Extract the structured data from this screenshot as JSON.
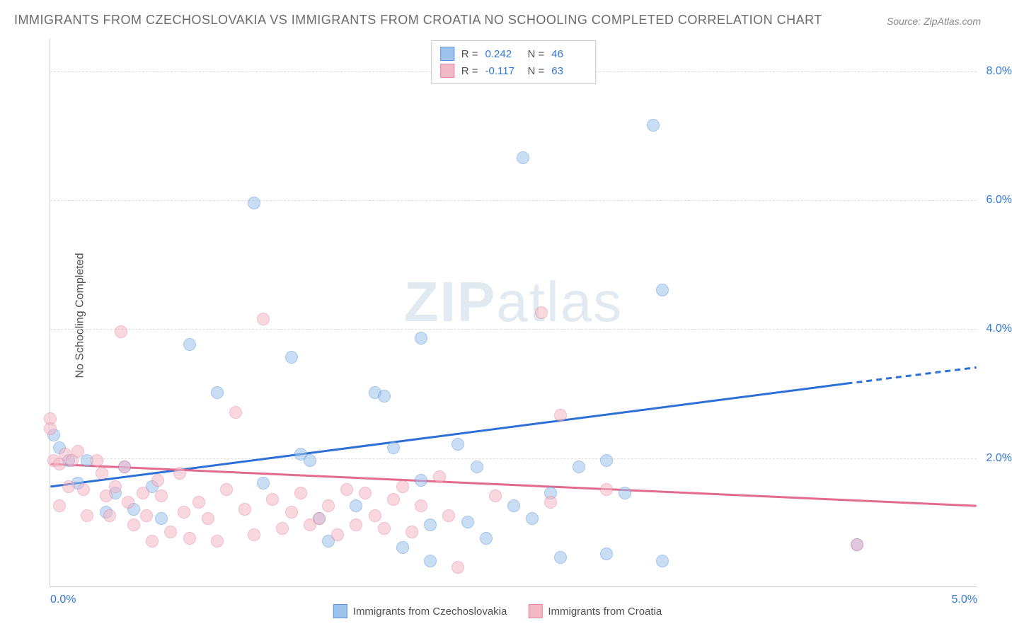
{
  "title": "IMMIGRANTS FROM CZECHOSLOVAKIA VS IMMIGRANTS FROM CROATIA NO SCHOOLING COMPLETED CORRELATION CHART",
  "source": "Source: ZipAtlas.com",
  "watermark_a": "ZIP",
  "watermark_b": "atlas",
  "y_axis_label": "No Schooling Completed",
  "chart": {
    "type": "scatter",
    "background_color": "#ffffff",
    "grid_color": "#dcdcdc",
    "border_color": "#cfcfcf",
    "xlim": [
      0.0,
      5.0
    ],
    "ylim": [
      0.0,
      8.5
    ],
    "x_ticks": [
      {
        "v": 0.0,
        "label": "0.0%"
      },
      {
        "v": 5.0,
        "label": "5.0%"
      }
    ],
    "y_ticks": [
      {
        "v": 2.0,
        "label": "2.0%"
      },
      {
        "v": 4.0,
        "label": "4.0%"
      },
      {
        "v": 6.0,
        "label": "6.0%"
      },
      {
        "v": 8.0,
        "label": "8.0%"
      }
    ],
    "marker_radius": 9,
    "marker_opacity": 0.55,
    "series": [
      {
        "name": "Immigrants from Czechoslovakia",
        "fill": "#9dc2ec",
        "stroke": "#5a96d8",
        "line_color": "#2c6fd6",
        "line_width": 3,
        "trend": {
          "x1": 0.0,
          "y1": 1.55,
          "x2": 4.3,
          "y2": 3.15,
          "x_dash_to": 5.0,
          "y_dash_to": 3.4
        },
        "r_label": "R =",
        "r_value": "0.242",
        "n_label": "N =",
        "n_value": "46",
        "points": [
          [
            0.02,
            2.35
          ],
          [
            0.05,
            2.15
          ],
          [
            0.1,
            1.95
          ],
          [
            0.15,
            1.6
          ],
          [
            0.2,
            1.95
          ],
          [
            0.3,
            1.15
          ],
          [
            0.35,
            1.45
          ],
          [
            0.4,
            1.85
          ],
          [
            0.45,
            1.2
          ],
          [
            0.55,
            1.55
          ],
          [
            0.6,
            1.05
          ],
          [
            0.75,
            3.75
          ],
          [
            0.9,
            3.0
          ],
          [
            1.1,
            5.95
          ],
          [
            1.15,
            1.6
          ],
          [
            1.3,
            3.55
          ],
          [
            1.35,
            2.05
          ],
          [
            1.4,
            1.95
          ],
          [
            1.45,
            1.05
          ],
          [
            1.5,
            0.7
          ],
          [
            1.65,
            1.25
          ],
          [
            1.75,
            3.0
          ],
          [
            1.8,
            2.95
          ],
          [
            1.85,
            2.15
          ],
          [
            1.9,
            0.6
          ],
          [
            2.0,
            3.85
          ],
          [
            2.0,
            1.65
          ],
          [
            2.05,
            0.95
          ],
          [
            2.05,
            0.4
          ],
          [
            2.2,
            2.2
          ],
          [
            2.25,
            1.0
          ],
          [
            2.3,
            1.85
          ],
          [
            2.35,
            0.75
          ],
          [
            2.5,
            1.25
          ],
          [
            2.6,
            1.05
          ],
          [
            2.55,
            6.65
          ],
          [
            2.7,
            1.45
          ],
          [
            2.75,
            0.45
          ],
          [
            2.85,
            1.85
          ],
          [
            3.0,
            0.5
          ],
          [
            3.0,
            1.95
          ],
          [
            3.1,
            1.45
          ],
          [
            3.25,
            7.15
          ],
          [
            3.3,
            4.6
          ],
          [
            3.3,
            0.4
          ],
          [
            4.35,
            0.65
          ]
        ]
      },
      {
        "name": "Immigrants from Croatia",
        "fill": "#f3b8c6",
        "stroke": "#e787a1",
        "line_color": "#e26b8e",
        "line_width": 3,
        "trend": {
          "x1": 0.0,
          "y1": 1.9,
          "x2": 5.0,
          "y2": 1.25,
          "x_dash_to": 5.0,
          "y_dash_to": 1.25
        },
        "r_label": "R =",
        "r_value": "-0.117",
        "n_label": "N =",
        "n_value": "63",
        "points": [
          [
            0.0,
            2.6
          ],
          [
            0.0,
            2.45
          ],
          [
            0.02,
            1.95
          ],
          [
            0.05,
            1.9
          ],
          [
            0.05,
            1.25
          ],
          [
            0.08,
            2.05
          ],
          [
            0.1,
            1.55
          ],
          [
            0.12,
            1.95
          ],
          [
            0.15,
            2.1
          ],
          [
            0.18,
            1.5
          ],
          [
            0.2,
            1.1
          ],
          [
            0.25,
            1.95
          ],
          [
            0.28,
            1.75
          ],
          [
            0.3,
            1.4
          ],
          [
            0.32,
            1.1
          ],
          [
            0.35,
            1.55
          ],
          [
            0.38,
            3.95
          ],
          [
            0.4,
            1.85
          ],
          [
            0.42,
            1.3
          ],
          [
            0.45,
            0.95
          ],
          [
            0.5,
            1.45
          ],
          [
            0.52,
            1.1
          ],
          [
            0.55,
            0.7
          ],
          [
            0.58,
            1.65
          ],
          [
            0.6,
            1.4
          ],
          [
            0.65,
            0.85
          ],
          [
            0.7,
            1.75
          ],
          [
            0.72,
            1.15
          ],
          [
            0.75,
            0.75
          ],
          [
            0.8,
            1.3
          ],
          [
            0.85,
            1.05
          ],
          [
            0.9,
            0.7
          ],
          [
            0.95,
            1.5
          ],
          [
            1.0,
            2.7
          ],
          [
            1.05,
            1.2
          ],
          [
            1.1,
            0.8
          ],
          [
            1.15,
            4.15
          ],
          [
            1.2,
            1.35
          ],
          [
            1.25,
            0.9
          ],
          [
            1.3,
            1.15
          ],
          [
            1.35,
            1.45
          ],
          [
            1.4,
            0.95
          ],
          [
            1.45,
            1.05
          ],
          [
            1.5,
            1.25
          ],
          [
            1.55,
            0.8
          ],
          [
            1.6,
            1.5
          ],
          [
            1.65,
            0.95
          ],
          [
            1.7,
            1.45
          ],
          [
            1.75,
            1.1
          ],
          [
            1.8,
            0.9
          ],
          [
            1.85,
            1.35
          ],
          [
            1.9,
            1.55
          ],
          [
            1.95,
            0.85
          ],
          [
            2.0,
            1.25
          ],
          [
            2.1,
            1.7
          ],
          [
            2.15,
            1.1
          ],
          [
            2.2,
            0.3
          ],
          [
            2.4,
            1.4
          ],
          [
            2.65,
            4.25
          ],
          [
            2.7,
            1.3
          ],
          [
            2.75,
            2.65
          ],
          [
            3.0,
            1.5
          ],
          [
            4.35,
            0.65
          ]
        ]
      }
    ]
  }
}
